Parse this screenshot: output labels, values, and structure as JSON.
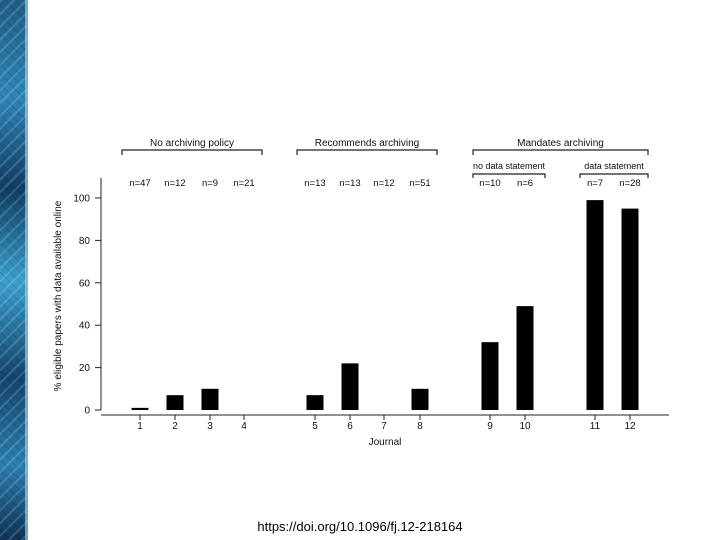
{
  "chart_data": {
    "type": "bar",
    "ylabel": "% eligible papers with data available online",
    "xlabel": "Journal",
    "ylim": [
      0,
      100
    ],
    "yticks": [
      0,
      20,
      40,
      60,
      80,
      100
    ],
    "categories": [
      "1",
      "2",
      "3",
      "4",
      "5",
      "6",
      "7",
      "8",
      "9",
      "10",
      "11",
      "12"
    ],
    "values": [
      1,
      7,
      10,
      0,
      7,
      22,
      0,
      10,
      32,
      49,
      99,
      95
    ],
    "sample_sizes": [
      "n=47",
      "n=12",
      "n=9",
      "n=21",
      "n=13",
      "n=13",
      "n=12",
      "n=51",
      "n=10",
      "n=6",
      "n=7",
      "n=28"
    ],
    "groups": [
      {
        "label": "No archiving policy",
        "journals": [
          "1",
          "2",
          "3",
          "4"
        ]
      },
      {
        "label": "Recommends archiving",
        "journals": [
          "5",
          "6",
          "7",
          "8"
        ]
      },
      {
        "label": "Mandates archiving",
        "journals": [
          "9",
          "10",
          "11",
          "12"
        ]
      }
    ],
    "subgroups": [
      {
        "label": "no data statement",
        "journals": [
          "9",
          "10"
        ]
      },
      {
        "label": "data statement",
        "journals": [
          "11",
          "12"
        ]
      }
    ],
    "bar_color": "#000000",
    "grid": false
  },
  "footer": {
    "doi": "https://doi.org/10.1096/fj.12-218164"
  }
}
